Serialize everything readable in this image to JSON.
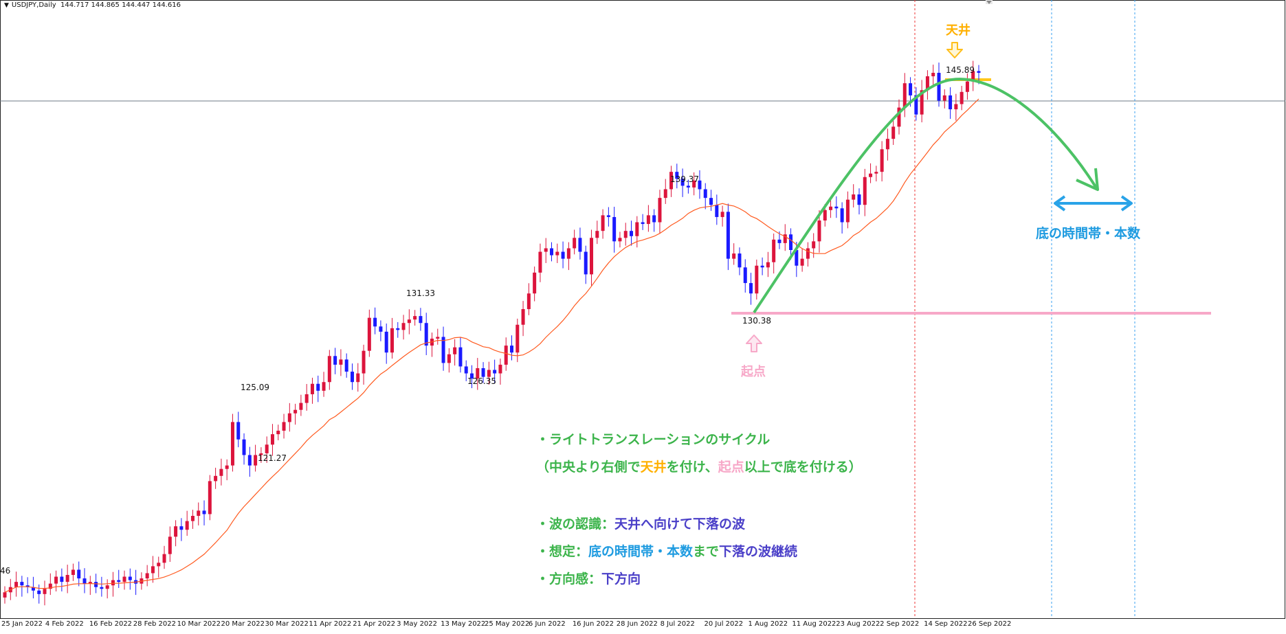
{
  "header": {
    "title": "USDJPY,Daily",
    "ohlc": "144.717 144.865 144.447 144.616"
  },
  "chart_data": {
    "type": "candlestick",
    "symbol": "USDJPY",
    "timeframe": "Daily",
    "price_range": [
      114.0,
      148.0
    ],
    "x_tick_labels": [
      "25 Jan 2022",
      "4 Feb 2022",
      "16 Feb 2022",
      "28 Feb 2022",
      "10 Mar 2022",
      "20 Mar 2022",
      "30 Mar 2022",
      "11 Apr 2022",
      "21 Apr 2022",
      "3 May 2022",
      "13 May 2022",
      "25 May 2022",
      "6 Jun 2022",
      "16 Jun 2022",
      "28 Jun 2022",
      "8 Jul 2022",
      "20 Jul 2022",
      "1 Aug 2022",
      "11 Aug 2022",
      "23 Aug 2022",
      "2 Sep 2022",
      "14 Sep 2022",
      "26 Sep 2022"
    ],
    "closes": [
      114.7,
      115.0,
      115.3,
      115.1,
      115.0,
      114.8,
      114.6,
      114.9,
      115.2,
      115.6,
      115.3,
      115.7,
      116.0,
      115.5,
      115.2,
      115.3,
      115.0,
      114.9,
      115.1,
      115.4,
      115.3,
      115.6,
      115.4,
      115.2,
      115.5,
      115.8,
      116.2,
      116.4,
      116.9,
      117.9,
      118.5,
      118.3,
      118.8,
      119.1,
      119.4,
      119.2,
      121.1,
      121.4,
      121.8,
      122.0,
      124.5,
      123.5,
      122.6,
      122.0,
      122.6,
      122.7,
      123.2,
      123.8,
      124.0,
      124.5,
      125.0,
      125.2,
      125.6,
      126.1,
      126.7,
      126.3,
      126.8,
      128.3,
      127.8,
      128.1,
      127.4,
      126.8,
      127.3,
      128.6,
      130.5,
      130.0,
      129.7,
      128.5,
      129.9,
      129.8,
      130.2,
      130.4,
      130.6,
      130.2,
      128.9,
      129.3,
      129.4,
      127.9,
      128.4,
      128.8,
      127.7,
      127.3,
      127.0,
      127.6,
      127.1,
      127.5,
      127.3,
      127.8,
      128.9,
      128.5,
      130.1,
      131.0,
      131.9,
      133.1,
      134.3,
      134.5,
      134.1,
      134.3,
      133.9,
      134.5,
      135.1,
      134.3,
      133.0,
      135.1,
      135.5,
      136.4,
      136.3,
      134.9,
      135.1,
      135.5,
      135.2,
      136.0,
      135.9,
      136.4,
      136.0,
      137.4,
      137.9,
      138.9,
      138.5,
      138.1,
      138.0,
      138.4,
      137.9,
      137.4,
      137.0,
      136.3,
      136.6,
      133.9,
      134.2,
      133.4,
      132.5,
      131.9,
      133.5,
      133.4,
      133.7,
      135.0,
      134.8,
      135.3,
      134.4,
      133.5,
      133.9,
      134.5,
      134.9,
      136.1,
      136.7,
      136.9,
      136.8,
      136.0,
      137.3,
      137.6,
      137.0,
      138.6,
      138.8,
      138.9,
      140.2,
      140.8,
      141.5,
      142.6,
      144.0,
      143.3,
      142.2,
      143.6,
      144.4,
      144.6,
      143.0,
      143.3,
      142.5,
      142.8,
      143.5,
      144.1,
      144.7,
      144.6
    ],
    "ma_label": "MA (orange)",
    "annotations": {
      "high_label_1": "125.09",
      "low_label_1": "121.27",
      "high_label_2": "131.33",
      "low_label_2": "126.35",
      "high_label_3": "139.37",
      "start_low": "130.38",
      "top_high": "145.89",
      "left_edge_label": "46"
    },
    "start_text": "起点",
    "top_text": "天井",
    "bottom_time_text": "底の時間帯・本数",
    "colors": {
      "up": "#dc143c",
      "down": "#1a1aff",
      "ma": "#ff5a1f",
      "wave": "#3cb44b",
      "top": "#ffb000",
      "start": "#f7a8c8",
      "time": "#29a3e8"
    }
  },
  "notes": {
    "line1": "・ライトトランスレーションのサイクル",
    "line2_a": "（中央より右側で",
    "line2_b": "天井",
    "line2_c": "を付け、",
    "line2_d": "起点",
    "line2_e": "以上で底を付ける）",
    "line3_a": "・波の認識：",
    "line3_b": "天井へ向けて下落の波",
    "line4_a": "・想定：",
    "line4_b": "底の時間帯・本数",
    "line4_c": "まで",
    "line4_d": "下落の波継続",
    "line5_a": "・方向感：",
    "line5_b": "下方向"
  }
}
